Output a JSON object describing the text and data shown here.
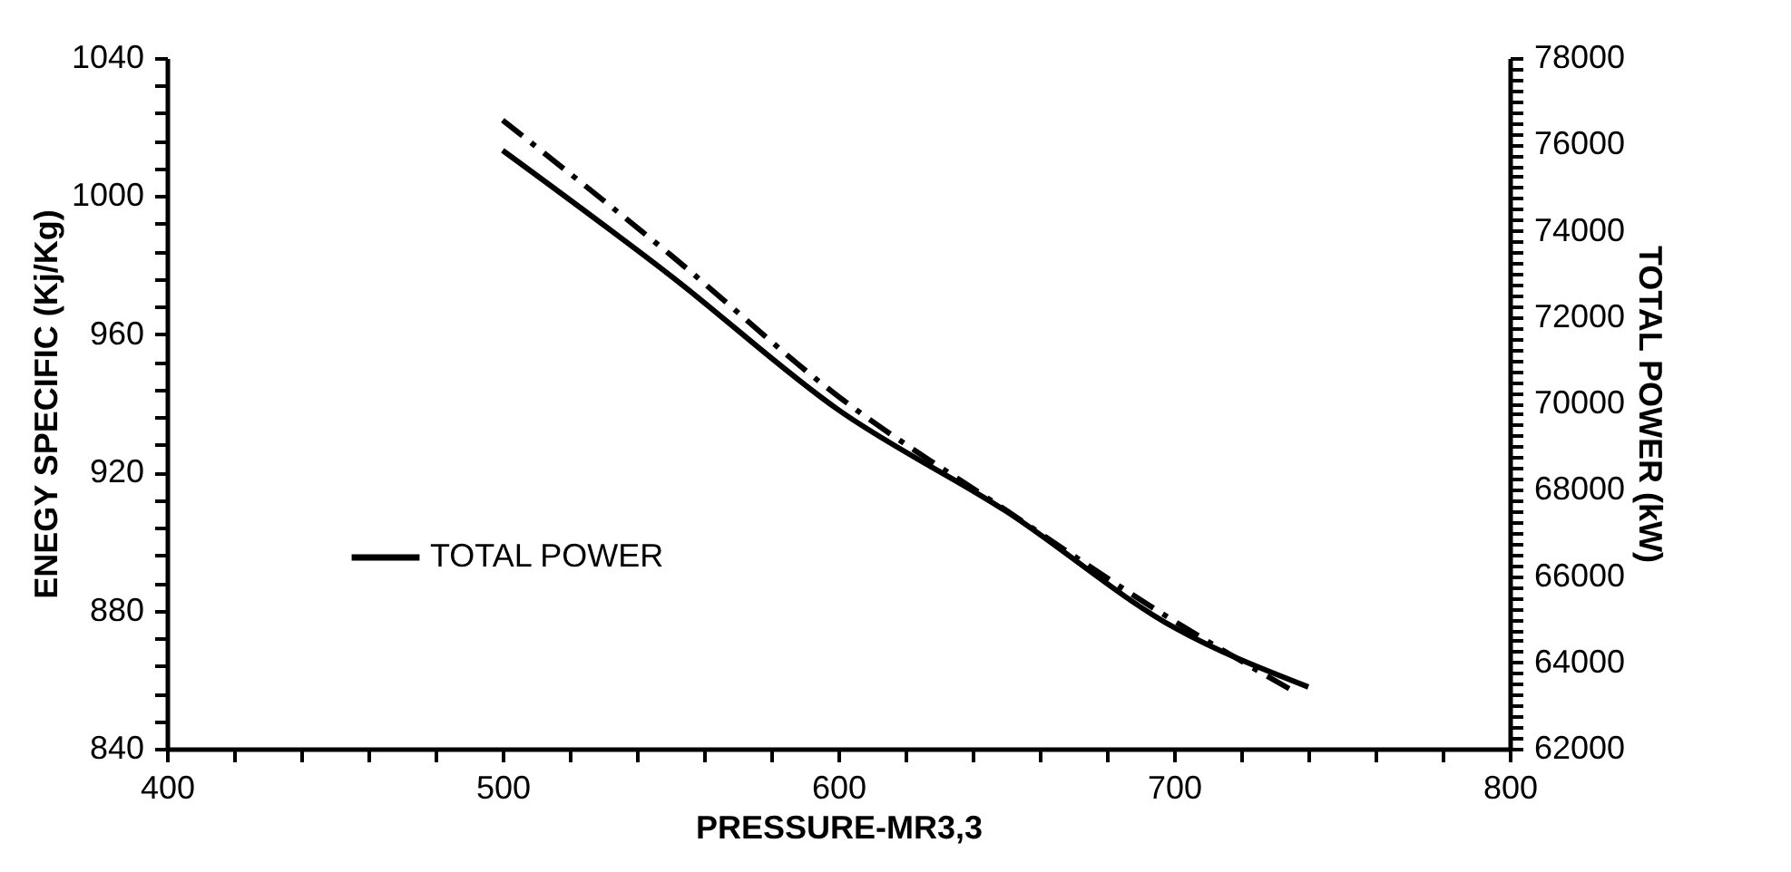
{
  "chart_data": {
    "type": "line",
    "xlabel": "PRESSURE-MR3,3",
    "ylabel": "ENEGY SPECIFIC (Kj/Kg)",
    "y2label": "TOTAL POWER (kW)",
    "series": [
      {
        "name": "TOTAL POWER",
        "color": "#000000",
        "axis": "y2",
        "line_style": "solid",
        "x": [
          500,
          550,
          600,
          650,
          700,
          740
        ],
        "values": [
          75860,
          72960,
          69850,
          67500,
          64810,
          63430
        ]
      },
      {
        "color": "#000000",
        "line_style": "dashed",
        "x": [
          500,
          550,
          600,
          650,
          700,
          735
        ],
        "values": [
          1022,
          983,
          942,
          909,
          877,
          857
        ]
      }
    ],
    "xlim": [
      400,
      800
    ],
    "ylim": [
      840,
      1040
    ],
    "y2lim": [
      62000,
      78000
    ],
    "xticks": [
      400,
      {
        "value": 420,
        "label": null
      },
      {
        "value": 440,
        "label": null
      },
      {
        "value": 460,
        "label": null
      },
      {
        "value": 480,
        "label": null
      },
      500,
      {
        "value": 520,
        "label": null
      },
      {
        "value": 540,
        "label": null
      },
      {
        "value": 560,
        "label": null
      },
      {
        "value": 580,
        "label": null
      },
      600,
      {
        "value": 620,
        "label": null
      },
      {
        "value": 640,
        "label": null
      },
      {
        "value": 660,
        "label": null
      },
      {
        "value": 680,
        "label": null
      },
      700,
      {
        "value": 720,
        "label": null
      },
      {
        "value": 740,
        "label": null
      },
      {
        "value": 760,
        "label": null
      },
      {
        "value": 780,
        "label": null
      },
      800
    ],
    "yticks": [
      840,
      {
        "value": 848,
        "label": null
      },
      {
        "value": 856,
        "label": null
      },
      {
        "value": 864,
        "label": null
      },
      {
        "value": 872,
        "label": null
      },
      880,
      {
        "value": 888,
        "label": null
      },
      {
        "value": 896,
        "label": null
      },
      {
        "value": 904,
        "label": null
      },
      {
        "value": 912,
        "label": null
      },
      920,
      {
        "value": 928,
        "label": null
      },
      {
        "value": 936,
        "label": null
      },
      {
        "value": 944,
        "label": null
      },
      {
        "value": 952,
        "label": null
      },
      960,
      {
        "value": 968,
        "label": null
      },
      {
        "value": 976,
        "label": null
      },
      {
        "value": 984,
        "label": null
      },
      {
        "value": 992,
        "label": null
      },
      1000,
      {
        "value": 1008,
        "label": null
      },
      {
        "value": 1016,
        "label": null
      },
      {
        "value": 1024,
        "label": null
      },
      {
        "value": 1032,
        "label": null
      },
      1040
    ],
    "y2ticks": [
      62000,
      {
        "value": 62250,
        "label": null
      },
      {
        "value": 62500,
        "label": null
      },
      {
        "value": 62750,
        "label": null
      },
      {
        "value": 63000,
        "label": null
      },
      {
        "value": 63250,
        "label": null
      },
      {
        "value": 63500,
        "label": null
      },
      {
        "value": 63750,
        "label": null
      },
      64000,
      {
        "value": 64250,
        "label": null
      },
      {
        "value": 64500,
        "label": null
      },
      {
        "value": 64750,
        "label": null
      },
      {
        "value": 65000,
        "label": null
      },
      {
        "value": 65250,
        "label": null
      },
      {
        "value": 65500,
        "label": null
      },
      {
        "value": 65750,
        "label": null
      },
      66000,
      {
        "value": 66250,
        "label": null
      },
      {
        "value": 66500,
        "label": null
      },
      {
        "value": 66750,
        "label": null
      },
      {
        "value": 67000,
        "label": null
      },
      {
        "value": 67250,
        "label": null
      },
      {
        "value": 67500,
        "label": null
      },
      {
        "value": 67750,
        "label": null
      },
      68000,
      {
        "value": 68250,
        "label": null
      },
      {
        "value": 68500,
        "label": null
      },
      {
        "value": 68750,
        "label": null
      },
      {
        "value": 69000,
        "label": null
      },
      {
        "value": 69250,
        "label": null
      },
      {
        "value": 69500,
        "label": null
      },
      {
        "value": 69750,
        "label": null
      },
      70000,
      {
        "value": 70250,
        "label": null
      },
      {
        "value": 70500,
        "label": null
      },
      {
        "value": 70750,
        "label": null
      },
      {
        "value": 71000,
        "label": null
      },
      {
        "value": 71250,
        "label": null
      },
      {
        "value": 71500,
        "label": null
      },
      {
        "value": 71750,
        "label": null
      },
      72000,
      {
        "value": 72250,
        "label": null
      },
      {
        "value": 72500,
        "label": null
      },
      {
        "value": 72750,
        "label": null
      },
      {
        "value": 73000,
        "label": null
      },
      {
        "value": 73250,
        "label": null
      },
      {
        "value": 73500,
        "label": null
      },
      {
        "value": 73750,
        "label": null
      },
      74000,
      {
        "value": 74250,
        "label": null
      },
      {
        "value": 74500,
        "label": null
      },
      {
        "value": 74750,
        "label": null
      },
      {
        "value": 75000,
        "label": null
      },
      {
        "value": 75250,
        "label": null
      },
      {
        "value": 75500,
        "label": null
      },
      {
        "value": 75750,
        "label": null
      },
      76000,
      {
        "value": 76250,
        "label": null
      },
      {
        "value": 76500,
        "label": null
      },
      {
        "value": 76750,
        "label": null
      },
      {
        "value": 77000,
        "label": null
      },
      {
        "value": 77250,
        "label": null
      },
      {
        "value": 77500,
        "label": null
      },
      {
        "value": 77750,
        "label": null
      },
      78000
    ],
    "legend": "left",
    "grid": false
  }
}
